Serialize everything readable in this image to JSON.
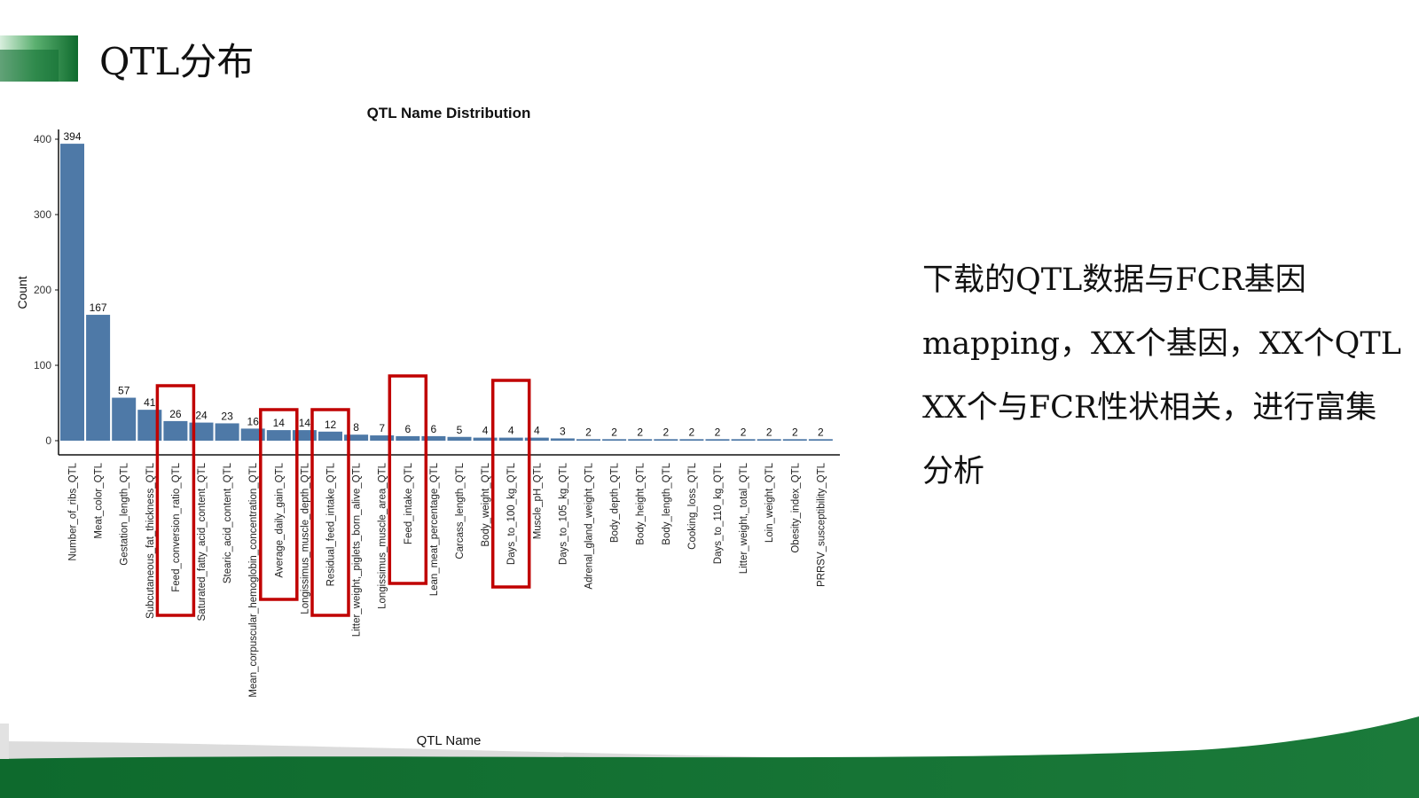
{
  "slide": {
    "title": "QTL分布",
    "side_text_lines": [
      "下载的QTL数据与FCR基因",
      "mapping，XX个基因，XX个QTL",
      "XX个与FCR性状相关，进行富集",
      "分析"
    ],
    "colors": {
      "accent_green": "#1b7a3a",
      "bar": "#4e79a7",
      "highlight_box": "#c00000",
      "footer_gray": "#d0d0d0"
    }
  },
  "chart_data": {
    "type": "bar",
    "title": "QTL Name Distribution",
    "xlabel": "QTL Name",
    "ylabel": "Count",
    "ylim": [
      0,
      400
    ],
    "yticks": [
      0,
      100,
      200,
      300,
      400
    ],
    "categories": [
      "Number_of_ribs_QTL",
      "Meat_color_QTL",
      "Gestation_length_QTL",
      "Subcutaneous_fat_thickness_QTL",
      "Feed_conversion_ratio_QTL",
      "Saturated_fatty_acid_content_QTL",
      "Stearic_acid_content_QTL",
      "Mean_corpuscular_hemoglobin_concentration_QTL",
      "Average_daily_gain_QTL",
      "Longissimus_muscle_depth_QTL",
      "Residual_feed_intake_QTL",
      "Litter_weight,_piglets_born_alive_QTL",
      "Longissimus_muscle_area_QTL",
      "Feed_intake_QTL",
      "Lean_meat_percentage_QTL",
      "Carcass_length_QTL",
      "Body_weight_QTL",
      "Days_to_100_kg_QTL",
      "Muscle_pH_QTL",
      "Days_to_105_kg_QTL",
      "Adrenal_gland_weight_QTL",
      "Body_depth_QTL",
      "Body_height_QTL",
      "Body_length_QTL",
      "Cooking_loss_QTL",
      "Days_to_110_kg_QTL",
      "Litter_weight,_total_QTL",
      "Loin_weight_QTL",
      "Obesity_index_QTL",
      "PRRSV_susceptibility_QTL"
    ],
    "values": [
      394,
      167,
      57,
      41,
      26,
      24,
      23,
      16,
      14,
      14,
      12,
      8,
      7,
      6,
      6,
      5,
      4,
      4,
      4,
      3,
      2,
      2,
      2,
      2,
      2,
      2,
      2,
      2,
      2,
      2
    ],
    "highlighted_categories": [
      4,
      8,
      10,
      13,
      17
    ],
    "grid": false,
    "legend": "none"
  }
}
